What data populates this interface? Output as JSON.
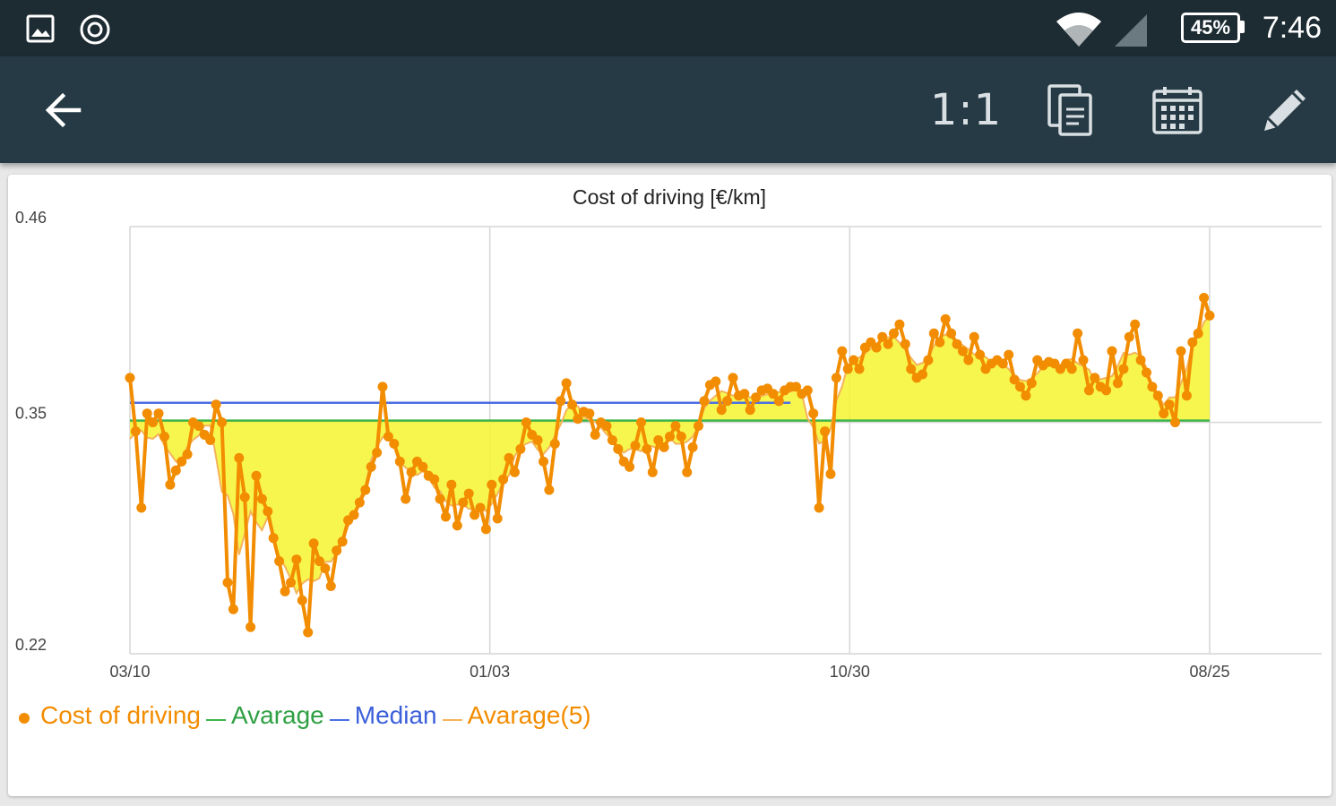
{
  "status_bar": {
    "icons": [
      "image-icon",
      "sync-icon",
      "wifi-icon",
      "signal-icon",
      "battery-icon"
    ],
    "battery": "45%",
    "time": "7:46"
  },
  "toolbar": {
    "back_icon": "arrow-left-icon",
    "ratio_label": "1:1",
    "actions": [
      "copy-icon",
      "calendar-icon",
      "pencil-icon"
    ]
  },
  "colors": {
    "status_bar": "#1d2b33",
    "toolbar": "#263a45",
    "series": "#f28c00",
    "fill": "#f5f530",
    "average": "#3cb44b",
    "median": "#4a6fe3",
    "moving_average": "#f5b35a"
  },
  "chart_data": {
    "type": "line",
    "title": "Cost of driving [€/km]",
    "y_ticks": [
      "0.46",
      "0.35",
      "0.22"
    ],
    "ylim": [
      0.22,
      0.46
    ],
    "x_ticks": [
      "03/10",
      "01/03",
      "10/30",
      "08/25"
    ],
    "grid": true,
    "legend_position": "bottom-left",
    "series": [
      {
        "name": "Cost of driving",
        "values": [
          0.375,
          0.345,
          0.302,
          0.355,
          0.35,
          0.355,
          0.342,
          0.315,
          0.323,
          0.328,
          0.332,
          0.35,
          0.348,
          0.343,
          0.34,
          0.36,
          0.35,
          0.26,
          0.245,
          0.33,
          0.308,
          0.235,
          0.32,
          0.307,
          0.3,
          0.285,
          0.272,
          0.255,
          0.26,
          0.273,
          0.25,
          0.232,
          0.282,
          0.272,
          0.268,
          0.258,
          0.278,
          0.283,
          0.295,
          0.298,
          0.305,
          0.312,
          0.325,
          0.333,
          0.37,
          0.342,
          0.338,
          0.328,
          0.307,
          0.322,
          0.328,
          0.325,
          0.32,
          0.318,
          0.307,
          0.297,
          0.315,
          0.292,
          0.305,
          0.31,
          0.298,
          0.302,
          0.29,
          0.315,
          0.296,
          0.318,
          0.33,
          0.322,
          0.335,
          0.35,
          0.343,
          0.34,
          0.328,
          0.312,
          0.338,
          0.362,
          0.372,
          0.36,
          0.352,
          0.356,
          0.355,
          0.343,
          0.35,
          0.348,
          0.34,
          0.335,
          0.328,
          0.325,
          0.337,
          0.35,
          0.335,
          0.322,
          0.34,
          0.336,
          0.342,
          0.348,
          0.342,
          0.322,
          0.336,
          0.348,
          0.362,
          0.371,
          0.373,
          0.357,
          0.362,
          0.375,
          0.365,
          0.366,
          0.357,
          0.364,
          0.368,
          0.369,
          0.366,
          0.362,
          0.368,
          0.37,
          0.37,
          0.366,
          0.368,
          0.355,
          0.302,
          0.345,
          0.321,
          0.375,
          0.39,
          0.38,
          0.385,
          0.38,
          0.392,
          0.395,
          0.392,
          0.398,
          0.394,
          0.4,
          0.405,
          0.394,
          0.38,
          0.375,
          0.377,
          0.385,
          0.4,
          0.395,
          0.408,
          0.4,
          0.394,
          0.39,
          0.385,
          0.398,
          0.388,
          0.38,
          0.383,
          0.385,
          0.383,
          0.388,
          0.374,
          0.37,
          0.365,
          0.372,
          0.385,
          0.382,
          0.384,
          0.383,
          0.38,
          0.383,
          0.38,
          0.4,
          0.385,
          0.368,
          0.375,
          0.37,
          0.368,
          0.39,
          0.372,
          0.38,
          0.398,
          0.405,
          0.385,
          0.378,
          0.37,
          0.365,
          0.355,
          0.36,
          0.35,
          0.39,
          0.365,
          0.395,
          0.4,
          0.42,
          0.41
        ]
      },
      {
        "name": "Avarage",
        "value": 0.351
      },
      {
        "name": "Median",
        "value": 0.361
      },
      {
        "name": "Avarage(5)"
      }
    ]
  }
}
